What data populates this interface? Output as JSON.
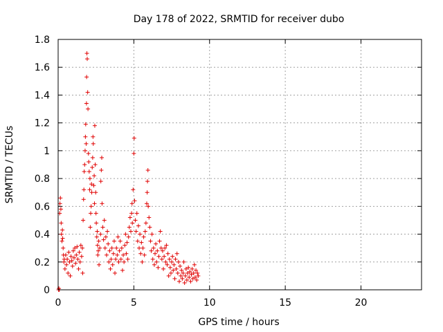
{
  "chart_data": {
    "type": "scatter",
    "title": "Day 178 of 2022, SRMTID for receiver dubo",
    "xlabel": "GPS time / hours",
    "ylabel": "SRMTID / TECUs",
    "xlim": [
      0,
      24
    ],
    "ylim": [
      0,
      1.8
    ],
    "xticks": [
      0,
      5,
      10,
      15,
      20
    ],
    "yticks": [
      0,
      0.2,
      0.4,
      0.6,
      0.8,
      1,
      1.2,
      1.4,
      1.6,
      1.8
    ],
    "xtick_labels": [
      "0",
      "5",
      "10",
      "15",
      "20"
    ],
    "ytick_labels": [
      "0",
      "0.2",
      "0.4",
      "0.6",
      "0.8",
      "1",
      "1.2",
      "1.4",
      "1.6",
      "1.8"
    ],
    "grid": true,
    "marker": "+",
    "marker_color": "#e00000",
    "series": [
      {
        "name": "SRMTID",
        "points": [
          [
            0.03,
            0.0
          ],
          [
            0.05,
            0.01
          ],
          [
            0.08,
            0.0
          ],
          [
            0.1,
            0.55
          ],
          [
            0.12,
            0.62
          ],
          [
            0.15,
            0.66
          ],
          [
            0.18,
            0.58
          ],
          [
            0.2,
            0.48
          ],
          [
            0.22,
            0.4
          ],
          [
            0.25,
            0.35
          ],
          [
            0.28,
            0.43
          ],
          [
            0.3,
            0.37
          ],
          [
            0.33,
            0.3
          ],
          [
            0.35,
            0.25
          ],
          [
            0.38,
            0.2
          ],
          [
            0.4,
            0.22
          ],
          [
            0.45,
            0.15
          ],
          [
            0.5,
            0.25
          ],
          [
            0.55,
            0.18
          ],
          [
            0.6,
            0.22
          ],
          [
            0.65,
            0.12
          ],
          [
            0.7,
            0.27
          ],
          [
            0.75,
            0.2
          ],
          [
            0.8,
            0.1
          ],
          [
            0.85,
            0.24
          ],
          [
            0.9,
            0.21
          ],
          [
            0.95,
            0.17
          ],
          [
            1.0,
            0.28
          ],
          [
            1.05,
            0.23
          ],
          [
            1.1,
            0.3
          ],
          [
            1.15,
            0.19
          ],
          [
            1.2,
            0.25
          ],
          [
            1.25,
            0.31
          ],
          [
            1.3,
            0.22
          ],
          [
            1.35,
            0.15
          ],
          [
            1.4,
            0.27
          ],
          [
            1.45,
            0.2
          ],
          [
            1.5,
            0.32
          ],
          [
            1.55,
            0.24
          ],
          [
            1.6,
            0.3
          ],
          [
            1.62,
            0.12
          ],
          [
            1.65,
            0.5
          ],
          [
            1.68,
            0.65
          ],
          [
            1.7,
            0.72
          ],
          [
            1.72,
            0.85
          ],
          [
            1.75,
            0.9
          ],
          [
            1.78,
            1.0
          ],
          [
            1.8,
            1.1
          ],
          [
            1.82,
            1.19
          ],
          [
            1.85,
            1.05
          ],
          [
            1.87,
            1.34
          ],
          [
            1.88,
            1.53
          ],
          [
            1.9,
            1.7
          ],
          [
            1.92,
            1.66
          ],
          [
            1.95,
            1.42
          ],
          [
            1.97,
            1.3
          ],
          [
            2.0,
            0.98
          ],
          [
            2.02,
            0.92
          ],
          [
            2.05,
            0.85
          ],
          [
            2.08,
            0.72
          ],
          [
            2.1,
            0.8
          ],
          [
            2.12,
            0.45
          ],
          [
            2.15,
            0.55
          ],
          [
            2.18,
            0.6
          ],
          [
            2.2,
            0.76
          ],
          [
            2.22,
            0.7
          ],
          [
            2.25,
            0.88
          ],
          [
            2.28,
            0.95
          ],
          [
            2.3,
            1.1
          ],
          [
            2.32,
            1.05
          ],
          [
            2.35,
            0.75
          ],
          [
            2.38,
            0.82
          ],
          [
            2.4,
            0.62
          ],
          [
            2.42,
            1.18
          ],
          [
            2.45,
            0.9
          ],
          [
            2.48,
            0.7
          ],
          [
            2.5,
            0.55
          ],
          [
            2.52,
            0.48
          ],
          [
            2.55,
            0.38
          ],
          [
            2.58,
            0.42
          ],
          [
            2.6,
            0.32
          ],
          [
            2.62,
            0.25
          ],
          [
            2.65,
            0.28
          ],
          [
            2.68,
            0.35
          ],
          [
            2.7,
            0.18
          ],
          [
            2.75,
            0.3
          ],
          [
            2.8,
            0.4
          ],
          [
            2.82,
            0.78
          ],
          [
            2.85,
            0.86
          ],
          [
            2.88,
            0.95
          ],
          [
            2.9,
            0.62
          ],
          [
            2.95,
            0.45
          ],
          [
            3.0,
            0.36
          ],
          [
            3.05,
            0.5
          ],
          [
            3.1,
            0.3
          ],
          [
            3.15,
            0.38
          ],
          [
            3.2,
            0.25
          ],
          [
            3.25,
            0.42
          ],
          [
            3.3,
            0.33
          ],
          [
            3.35,
            0.2
          ],
          [
            3.4,
            0.28
          ],
          [
            3.45,
            0.15
          ],
          [
            3.5,
            0.22
          ],
          [
            3.55,
            0.3
          ],
          [
            3.6,
            0.18
          ],
          [
            3.65,
            0.26
          ],
          [
            3.7,
            0.35
          ],
          [
            3.75,
            0.12
          ],
          [
            3.8,
            0.22
          ],
          [
            3.85,
            0.3
          ],
          [
            3.9,
            0.25
          ],
          [
            3.95,
            0.38
          ],
          [
            4.0,
            0.2
          ],
          [
            4.05,
            0.28
          ],
          [
            4.1,
            0.35
          ],
          [
            4.15,
            0.22
          ],
          [
            4.2,
            0.3
          ],
          [
            4.25,
            0.14
          ],
          [
            4.3,
            0.25
          ],
          [
            4.35,
            0.2
          ],
          [
            4.4,
            0.32
          ],
          [
            4.45,
            0.4
          ],
          [
            4.5,
            0.26
          ],
          [
            4.55,
            0.34
          ],
          [
            4.6,
            0.22
          ],
          [
            4.65,
            0.38
          ],
          [
            4.7,
            0.45
          ],
          [
            4.75,
            0.52
          ],
          [
            4.8,
            0.42
          ],
          [
            4.85,
            0.55
          ],
          [
            4.88,
            0.62
          ],
          [
            4.9,
            0.48
          ],
          [
            4.95,
            0.72
          ],
          [
            5.0,
            0.98
          ],
          [
            5.02,
            1.09
          ],
          [
            5.05,
            0.64
          ],
          [
            5.1,
            0.5
          ],
          [
            5.15,
            0.42
          ],
          [
            5.2,
            0.55
          ],
          [
            5.25,
            0.35
          ],
          [
            5.3,
            0.46
          ],
          [
            5.35,
            0.3
          ],
          [
            5.4,
            0.4
          ],
          [
            5.45,
            0.26
          ],
          [
            5.5,
            0.34
          ],
          [
            5.55,
            0.2
          ],
          [
            5.6,
            0.3
          ],
          [
            5.65,
            0.38
          ],
          [
            5.7,
            0.25
          ],
          [
            5.75,
            0.42
          ],
          [
            5.8,
            0.48
          ],
          [
            5.85,
            0.62
          ],
          [
            5.88,
            0.7
          ],
          [
            5.9,
            0.78
          ],
          [
            5.93,
            0.86
          ],
          [
            5.95,
            0.6
          ],
          [
            6.0,
            0.52
          ],
          [
            6.05,
            0.45
          ],
          [
            6.1,
            0.35
          ],
          [
            6.15,
            0.28
          ],
          [
            6.2,
            0.4
          ],
          [
            6.25,
            0.22
          ],
          [
            6.3,
            0.3
          ],
          [
            6.35,
            0.18
          ],
          [
            6.4,
            0.26
          ],
          [
            6.45,
            0.33
          ],
          [
            6.5,
            0.2
          ],
          [
            6.55,
            0.28
          ],
          [
            6.6,
            0.16
          ],
          [
            6.65,
            0.24
          ],
          [
            6.7,
            0.35
          ],
          [
            6.75,
            0.42
          ],
          [
            6.8,
            0.3
          ],
          [
            6.85,
            0.22
          ],
          [
            6.9,
            0.28
          ],
          [
            6.95,
            0.15
          ],
          [
            7.0,
            0.24
          ],
          [
            7.05,
            0.3
          ],
          [
            7.1,
            0.2
          ],
          [
            7.15,
            0.32
          ],
          [
            7.2,
            0.18
          ],
          [
            7.25,
            0.26
          ],
          [
            7.3,
            0.1
          ],
          [
            7.35,
            0.22
          ],
          [
            7.4,
            0.16
          ],
          [
            7.45,
            0.12
          ],
          [
            7.5,
            0.2
          ],
          [
            7.55,
            0.24
          ],
          [
            7.6,
            0.14
          ],
          [
            7.65,
            0.18
          ],
          [
            7.7,
            0.08
          ],
          [
            7.75,
            0.22
          ],
          [
            7.8,
            0.15
          ],
          [
            7.85,
            0.26
          ],
          [
            7.9,
            0.12
          ],
          [
            7.95,
            0.2
          ],
          [
            8.0,
            0.06
          ],
          [
            8.05,
            0.17
          ],
          [
            8.1,
            0.1
          ],
          [
            8.15,
            0.14
          ],
          [
            8.2,
            0.08
          ],
          [
            8.25,
            0.12
          ],
          [
            8.3,
            0.2
          ],
          [
            8.35,
            0.05
          ],
          [
            8.4,
            0.1
          ],
          [
            8.45,
            0.15
          ],
          [
            8.5,
            0.07
          ],
          [
            8.55,
            0.12
          ],
          [
            8.6,
            0.16
          ],
          [
            8.65,
            0.09
          ],
          [
            8.7,
            0.13
          ],
          [
            8.75,
            0.06
          ],
          [
            8.8,
            0.11
          ],
          [
            8.85,
            0.15
          ],
          [
            8.9,
            0.08
          ],
          [
            8.95,
            0.12
          ],
          [
            9.0,
            0.18
          ],
          [
            9.05,
            0.09
          ],
          [
            9.1,
            0.14
          ],
          [
            9.15,
            0.07
          ],
          [
            9.2,
            0.12
          ],
          [
            9.25,
            0.1
          ]
        ]
      }
    ]
  }
}
